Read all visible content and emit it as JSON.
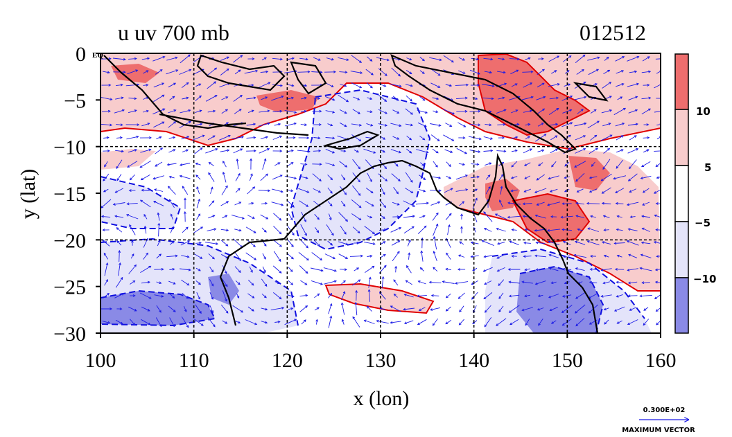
{
  "plot": {
    "title_left": "u  uv 700 mb",
    "title_right": "012512",
    "xlabel": "x (lon)",
    "ylabel": "y (lat)",
    "eq_label": "EQ",
    "x_ticks": [
      "100",
      "110",
      "120",
      "130",
      "140",
      "150",
      "160"
    ],
    "y_ticks": [
      "0",
      "−5",
      "−10",
      "−15",
      "−20",
      "−25",
      "−30"
    ]
  },
  "colorbar": {
    "labels": [
      "10",
      "5",
      "−5",
      "−10"
    ],
    "colors": [
      "#ee6e6e",
      "#f8cccc",
      "#ffffff",
      "#e4e4fa",
      "#8a8ae6"
    ]
  },
  "vector_key": {
    "value": "0.300E+02",
    "label": "MAXIMUM VECTOR"
  },
  "map_data": {
    "type": "contour_vector_map",
    "lon_range": [
      100,
      160
    ],
    "lat_range": [
      -30,
      0
    ],
    "grid_lon": [
      110,
      120,
      130,
      140,
      150
    ],
    "grid_lat": [
      -10,
      -20
    ],
    "levels": [
      -10,
      -5,
      5,
      10
    ],
    "colors": {
      "strong_pos": "#ee6e6e",
      "pos": "#f8cccc",
      "neg": "#e4e4fa",
      "strong_neg": "#8a8ae6",
      "pos_contour": "#e00000",
      "neg_contour": "#1010e0",
      "vector": "#1a1ae6",
      "coast": "#000000"
    }
  }
}
